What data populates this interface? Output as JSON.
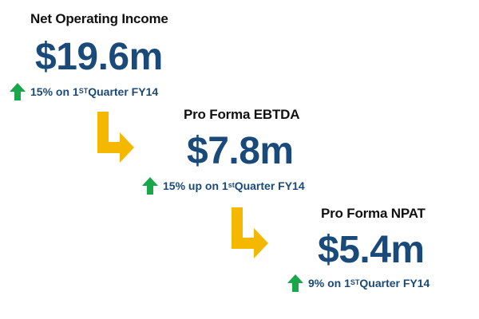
{
  "colors": {
    "value_text": "#1a4a7a",
    "label_text": "#111111",
    "up_arrow": "#1aa64a",
    "bend_arrow": "#f5b800"
  },
  "icons": {
    "up_arrow": "green-up-arrow-icon",
    "bend_arrow": "yellow-bend-arrow-icon"
  },
  "metrics": [
    {
      "label": "Net Operating Income",
      "value": "$19.6m",
      "change_pre": "15% on 1",
      "change_sup": "ST",
      "change_post": " Quarter FY14"
    },
    {
      "label": "Pro Forma EBTDA",
      "value": "$7.8m",
      "change_pre": "15% up on 1",
      "change_sup": "st",
      "change_post": " Quarter FY14"
    },
    {
      "label": "Pro Forma NPAT",
      "value": "$5.4m",
      "change_pre": "9% on 1",
      "change_sup": "ST",
      "change_post": " Quarter FY14"
    }
  ]
}
